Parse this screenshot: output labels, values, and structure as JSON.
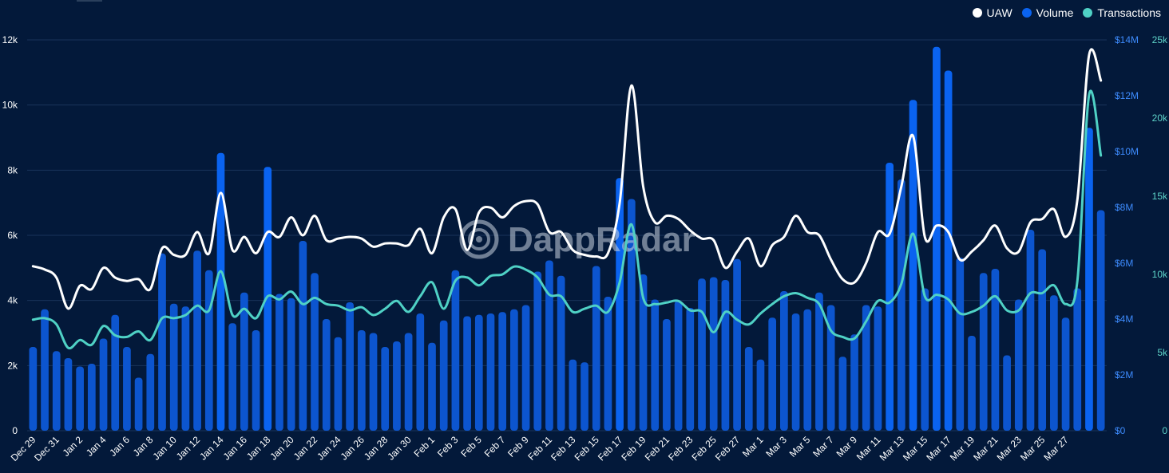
{
  "chart_data": {
    "type": "bar",
    "title": "",
    "watermark": "DappRadar",
    "colors": {
      "background": "#03193a",
      "grid": "#19345a",
      "uaw": "#ffffff",
      "volume": "#0a63f0",
      "transactions": "#4fd1c5",
      "axis_text": "#ffffff",
      "volume_axis_text": "#3d8bfd",
      "tx_axis_text": "#5ed3c8"
    },
    "legend": {
      "position": "top-right",
      "items": [
        {
          "label": "UAW",
          "color": "#ffffff"
        },
        {
          "label": "Volume",
          "color": "#0a63f0"
        },
        {
          "label": "Transactions",
          "color": "#4fd1c5"
        }
      ]
    },
    "y_axis_left": {
      "series": "UAW",
      "ticks": [
        "0",
        "2k",
        "4k",
        "6k",
        "8k",
        "10k",
        "12k"
      ],
      "range": [
        0,
        12000
      ]
    },
    "y_axis_right1": {
      "series": "Volume",
      "ticks": [
        "$0",
        "$2M",
        "$4M",
        "$6M",
        "$8M",
        "$10M",
        "$12M",
        "$14M"
      ],
      "range": [
        0,
        14000000
      ]
    },
    "y_axis_right2": {
      "series": "Transactions",
      "ticks": [
        "0",
        "5k",
        "10k",
        "15k",
        "20k",
        "25k"
      ],
      "range": [
        0,
        25000
      ]
    },
    "x_tick_labels": [
      "Dec 29",
      "Dec 31",
      "Jan 2",
      "Jan 4",
      "Jan 6",
      "Jan 8",
      "Jan 10",
      "Jan 12",
      "Jan 14",
      "Jan 16",
      "Jan 18",
      "Jan 20",
      "Jan 22",
      "Jan 24",
      "Jan 26",
      "Jan 28",
      "Jan 30",
      "Feb 1",
      "Feb 3",
      "Feb 5",
      "Feb 7",
      "Feb 9",
      "Feb 11",
      "Feb 13",
      "Feb 15",
      "Feb 17",
      "Feb 19",
      "Feb 21",
      "Feb 23",
      "Feb 25",
      "Feb 27",
      "Mar 1",
      "Mar 3",
      "Mar 5",
      "Mar 7",
      "Mar 9",
      "Mar 11",
      "Mar 13",
      "Mar 15",
      "Mar 17",
      "Mar 19",
      "Mar 21",
      "Mar 23",
      "Mar 25",
      "Mar 27"
    ],
    "series": [
      {
        "name": "Volume",
        "type": "bar",
        "axis": "right1",
        "values": [
          3.0,
          4.35,
          2.85,
          2.6,
          2.3,
          2.4,
          3.3,
          4.15,
          3.0,
          1.9,
          2.75,
          6.35,
          4.55,
          4.45,
          6.45,
          5.75,
          9.95,
          3.85,
          4.95,
          3.6,
          9.45,
          4.9,
          4.75,
          6.8,
          5.65,
          4.0,
          3.35,
          4.6,
          3.6,
          3.5,
          3.0,
          3.2,
          3.5,
          4.2,
          3.15,
          3.95,
          5.75,
          4.1,
          4.15,
          4.2,
          4.25,
          4.35,
          4.5,
          5.7,
          6.1,
          5.55,
          2.55,
          2.45,
          5.9,
          4.8,
          9.05,
          8.3,
          5.6,
          4.7,
          4.0,
          4.65,
          4.4,
          5.45,
          5.5,
          5.4,
          6.15,
          3.0,
          2.55,
          4.05,
          5.0,
          4.2,
          4.35,
          4.95,
          4.5,
          2.65,
          3.45,
          4.5,
          4.45,
          9.6,
          9.0,
          11.85,
          5.1,
          13.75,
          12.9,
          6.2,
          3.4,
          5.65,
          5.8,
          2.7,
          4.7,
          7.2,
          6.5,
          4.85,
          4.05,
          5.1,
          10.85,
          7.9
        ]
      },
      {
        "name": "UAW",
        "type": "line",
        "axis": "left",
        "values": [
          5050,
          4950,
          4700,
          3750,
          4450,
          4350,
          5000,
          4700,
          4600,
          4650,
          4350,
          5600,
          5400,
          5400,
          6100,
          5450,
          7300,
          5550,
          5950,
          5450,
          6100,
          5950,
          6550,
          6000,
          6600,
          5850,
          5900,
          5950,
          5900,
          5650,
          5750,
          5750,
          5700,
          6200,
          5450,
          6550,
          6800,
          5550,
          6700,
          6850,
          6550,
          6900,
          7050,
          6950,
          6100,
          6100,
          5550,
          5400,
          5350,
          5450,
          7000,
          10600,
          7500,
          6400,
          6600,
          6500,
          6150,
          5900,
          5850,
          5000,
          5500,
          5900,
          5050,
          5700,
          5950,
          6600,
          6100,
          6000,
          5250,
          4650,
          4550,
          5150,
          6100,
          6050,
          7500,
          9050,
          5950,
          6300,
          6100,
          5250,
          5500,
          5850,
          6300,
          5600,
          5500,
          6400,
          6500,
          6800,
          5950,
          7100,
          11550,
          10750
        ]
      },
      {
        "name": "Transactions",
        "type": "line",
        "axis": "right2",
        "values": [
          7100,
          7200,
          6800,
          5300,
          5800,
          5500,
          6700,
          6100,
          6000,
          6350,
          5800,
          7200,
          7200,
          7400,
          8000,
          7700,
          10200,
          7400,
          7800,
          7200,
          8600,
          8400,
          8900,
          8100,
          8500,
          8100,
          8000,
          7700,
          7900,
          7400,
          7800,
          8300,
          7600,
          8600,
          9500,
          7800,
          9600,
          9800,
          9300,
          9900,
          10000,
          10500,
          10300,
          9800,
          8700,
          8600,
          7600,
          7800,
          8000,
          7600,
          9500,
          13200,
          8500,
          8100,
          8200,
          8300,
          7700,
          7600,
          6300,
          7600,
          7100,
          6800,
          7500,
          8100,
          8600,
          8800,
          8500,
          8100,
          6400,
          6000,
          5900,
          7000,
          8300,
          8200,
          9400,
          12600,
          8600,
          8700,
          8400,
          7500,
          7600,
          8000,
          8600,
          7700,
          7700,
          8800,
          8800,
          9300,
          8100,
          9600,
          21500,
          17600
        ]
      }
    ]
  }
}
